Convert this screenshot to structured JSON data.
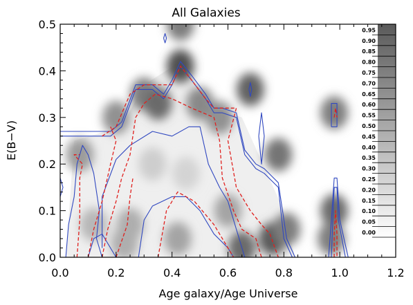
{
  "chart_data": {
    "type": "heatmap",
    "title": "All Galaxies",
    "xlabel": "Age galaxy/Age Universe",
    "ylabel": "E(B−V)",
    "xlim": [
      0.0,
      1.2
    ],
    "ylim": [
      0.0,
      0.5
    ],
    "xticks": [
      "0.0",
      "0.2",
      "0.4",
      "0.6",
      "0.8",
      "1.0",
      "1.2"
    ],
    "yticks": [
      "0.0",
      "0.1",
      "0.2",
      "0.3",
      "0.4",
      "0.5"
    ],
    "colorbar": {
      "levels": [
        "0.95",
        "0.90",
        "0.85",
        "0.80",
        "0.75",
        "0.70",
        "0.65",
        "0.60",
        "0.55",
        "0.50",
        "0.45",
        "0.40",
        "0.35",
        "0.30",
        "0.25",
        "0.20",
        "0.15",
        "0.10",
        "0.05",
        "0.00"
      ]
    },
    "density_peaks": [
      {
        "x": 0.43,
        "y": 0.5,
        "value": 0.6
      },
      {
        "x": 0.43,
        "y": 0.41,
        "value": 0.85
      },
      {
        "x": 0.3,
        "y": 0.35,
        "value": 0.6
      },
      {
        "x": 0.35,
        "y": 0.33,
        "value": 0.7
      },
      {
        "x": 0.5,
        "y": 0.33,
        "value": 0.55
      },
      {
        "x": 0.68,
        "y": 0.36,
        "value": 0.75
      },
      {
        "x": 0.57,
        "y": 0.3,
        "value": 0.5
      },
      {
        "x": 0.2,
        "y": 0.3,
        "value": 0.5
      },
      {
        "x": 0.78,
        "y": 0.22,
        "value": 0.65
      },
      {
        "x": 0.98,
        "y": 0.31,
        "value": 0.6
      },
      {
        "x": 0.07,
        "y": 0.22,
        "value": 0.45
      },
      {
        "x": 0.98,
        "y": 0.1,
        "value": 0.7
      },
      {
        "x": 0.97,
        "y": 0.04,
        "value": 0.6
      },
      {
        "x": 0.76,
        "y": 0.04,
        "value": 0.8
      },
      {
        "x": 0.65,
        "y": 0.02,
        "value": 0.7
      },
      {
        "x": 0.81,
        "y": 0.06,
        "value": 0.6
      },
      {
        "x": 0.42,
        "y": 0.04,
        "value": 0.4
      },
      {
        "x": 0.6,
        "y": 0.1,
        "value": 0.4
      },
      {
        "x": 0.25,
        "y": 0.07,
        "value": 0.35
      },
      {
        "x": 0.12,
        "y": 0.07,
        "value": 0.3
      },
      {
        "x": 0.23,
        "y": 0.03,
        "value": 0.35
      },
      {
        "x": 0.33,
        "y": 0.2,
        "value": 0.18
      },
      {
        "x": 0.45,
        "y": 0.18,
        "value": 0.15
      }
    ],
    "contours": [
      {
        "style": "blue-solid",
        "points": [
          [
            0.0,
            0.27
          ],
          [
            0.12,
            0.27
          ],
          [
            0.18,
            0.27
          ],
          [
            0.22,
            0.29
          ],
          [
            0.27,
            0.37
          ],
          [
            0.33,
            0.37
          ],
          [
            0.37,
            0.35
          ],
          [
            0.4,
            0.38
          ],
          [
            0.43,
            0.42
          ],
          [
            0.47,
            0.39
          ],
          [
            0.52,
            0.35
          ],
          [
            0.55,
            0.32
          ],
          [
            0.58,
            0.32
          ],
          [
            0.63,
            0.31
          ],
          [
            0.66,
            0.23
          ],
          [
            0.7,
            0.2
          ],
          [
            0.73,
            0.19
          ],
          [
            0.78,
            0.16
          ],
          [
            0.81,
            0.04
          ],
          [
            0.84,
            0.0
          ]
        ]
      },
      {
        "style": "blue-solid",
        "points": [
          [
            0.0,
            0.26
          ],
          [
            0.12,
            0.26
          ],
          [
            0.18,
            0.26
          ],
          [
            0.22,
            0.28
          ],
          [
            0.27,
            0.36
          ],
          [
            0.33,
            0.36
          ],
          [
            0.37,
            0.34
          ],
          [
            0.4,
            0.37
          ],
          [
            0.43,
            0.41
          ],
          [
            0.47,
            0.38
          ],
          [
            0.52,
            0.34
          ],
          [
            0.55,
            0.31
          ],
          [
            0.58,
            0.31
          ],
          [
            0.63,
            0.3
          ],
          [
            0.66,
            0.22
          ],
          [
            0.7,
            0.19
          ],
          [
            0.73,
            0.18
          ],
          [
            0.78,
            0.15
          ],
          [
            0.8,
            0.04
          ],
          [
            0.83,
            0.0
          ]
        ]
      },
      {
        "style": "blue-solid",
        "points": [
          [
            0.02,
            0.0
          ],
          [
            0.03,
            0.07
          ],
          [
            0.05,
            0.13
          ],
          [
            0.06,
            0.2
          ],
          [
            0.08,
            0.24
          ],
          [
            0.1,
            0.22
          ],
          [
            0.12,
            0.18
          ],
          [
            0.14,
            0.1
          ],
          [
            0.13,
            0.04
          ],
          [
            0.15,
            0.0
          ]
        ]
      },
      {
        "style": "blue-solid",
        "points": [
          [
            0.15,
            0.02
          ],
          [
            0.15,
            0.13
          ],
          [
            0.2,
            0.21
          ],
          [
            0.25,
            0.24
          ],
          [
            0.33,
            0.27
          ],
          [
            0.4,
            0.26
          ],
          [
            0.46,
            0.28
          ],
          [
            0.5,
            0.28
          ],
          [
            0.53,
            0.2
          ],
          [
            0.57,
            0.15
          ],
          [
            0.6,
            0.12
          ],
          [
            0.62,
            0.08
          ],
          [
            0.64,
            0.04
          ],
          [
            0.66,
            0.0
          ]
        ]
      },
      {
        "style": "blue-solid",
        "points": [
          [
            0.28,
            0.0
          ],
          [
            0.3,
            0.08
          ],
          [
            0.33,
            0.11
          ],
          [
            0.4,
            0.13
          ],
          [
            0.45,
            0.13
          ],
          [
            0.5,
            0.1
          ],
          [
            0.55,
            0.05
          ],
          [
            0.6,
            0.02
          ],
          [
            0.62,
            0.0
          ]
        ]
      },
      {
        "style": "blue-solid",
        "points": [
          [
            0.1,
            0.0
          ],
          [
            0.12,
            0.04
          ],
          [
            0.15,
            0.05
          ],
          [
            0.2,
            0.0
          ]
        ]
      },
      {
        "style": "blue-solid",
        "points": [
          [
            0.96,
            0.0
          ],
          [
            0.97,
            0.08
          ],
          [
            0.98,
            0.17
          ],
          [
            0.99,
            0.17
          ],
          [
            1.0,
            0.08
          ],
          [
            1.03,
            0.0
          ]
        ]
      },
      {
        "style": "blue-solid",
        "points": [
          [
            0.97,
            0.0
          ],
          [
            0.975,
            0.08
          ],
          [
            0.98,
            0.15
          ],
          [
            0.99,
            0.15
          ],
          [
            0.995,
            0.08
          ],
          [
            1.02,
            0.0
          ]
        ]
      },
      {
        "style": "blue-solid",
        "points": [
          [
            0.97,
            0.28
          ],
          [
            0.97,
            0.33
          ],
          [
            0.99,
            0.33
          ],
          [
            0.99,
            0.28
          ],
          [
            0.97,
            0.28
          ]
        ]
      },
      {
        "style": "blue-solid",
        "points": [
          [
            0.675,
            0.36
          ],
          [
            0.68,
            0.375
          ],
          [
            0.685,
            0.36
          ],
          [
            0.68,
            0.345
          ],
          [
            0.675,
            0.36
          ]
        ]
      },
      {
        "style": "blue-solid",
        "points": [
          [
            0.37,
            0.47
          ],
          [
            0.375,
            0.48
          ],
          [
            0.38,
            0.47
          ],
          [
            0.375,
            0.46
          ],
          [
            0.37,
            0.47
          ]
        ]
      },
      {
        "style": "blue-solid",
        "points": [
          [
            0.0,
            0.17
          ],
          [
            0.01,
            0.15
          ],
          [
            0.0,
            0.13
          ]
        ]
      },
      {
        "style": "blue-solid",
        "points": [
          [
            0.71,
            0.26
          ],
          [
            0.72,
            0.31
          ],
          [
            0.73,
            0.26
          ],
          [
            0.72,
            0.2
          ],
          [
            0.71,
            0.26
          ]
        ]
      },
      {
        "style": "red-dashed",
        "points": [
          [
            0.15,
            0.26
          ],
          [
            0.2,
            0.28
          ],
          [
            0.25,
            0.35
          ],
          [
            0.3,
            0.37
          ],
          [
            0.36,
            0.37
          ],
          [
            0.4,
            0.37
          ],
          [
            0.43,
            0.41
          ],
          [
            0.47,
            0.38
          ],
          [
            0.52,
            0.34
          ],
          [
            0.55,
            0.32
          ],
          [
            0.58,
            0.32
          ],
          [
            0.63,
            0.32
          ],
          [
            0.6,
            0.25
          ],
          [
            0.63,
            0.15
          ],
          [
            0.68,
            0.1
          ],
          [
            0.72,
            0.07
          ],
          [
            0.75,
            0.05
          ],
          [
            0.78,
            0.0
          ]
        ]
      },
      {
        "style": "red-dashed",
        "points": [
          [
            0.1,
            0.0
          ],
          [
            0.12,
            0.06
          ],
          [
            0.15,
            0.12
          ],
          [
            0.18,
            0.2
          ],
          [
            0.2,
            0.25
          ],
          [
            0.18,
            0.28
          ]
        ]
      },
      {
        "style": "red-dashed",
        "points": [
          [
            0.15,
            0.0
          ],
          [
            0.17,
            0.06
          ],
          [
            0.2,
            0.12
          ],
          [
            0.22,
            0.17
          ],
          [
            0.25,
            0.22
          ],
          [
            0.27,
            0.3
          ],
          [
            0.3,
            0.33
          ],
          [
            0.34,
            0.35
          ],
          [
            0.4,
            0.34
          ],
          [
            0.47,
            0.32
          ],
          [
            0.55,
            0.3
          ],
          [
            0.57,
            0.25
          ],
          [
            0.58,
            0.17
          ],
          [
            0.62,
            0.1
          ],
          [
            0.65,
            0.06
          ],
          [
            0.7,
            0.04
          ],
          [
            0.72,
            0.0
          ]
        ]
      },
      {
        "style": "red-dashed",
        "points": [
          [
            0.2,
            0.0
          ],
          [
            0.24,
            0.07
          ],
          [
            0.25,
            0.13
          ],
          [
            0.26,
            0.17
          ]
        ]
      },
      {
        "style": "red-dashed",
        "points": [
          [
            0.35,
            0.0
          ],
          [
            0.38,
            0.1
          ],
          [
            0.42,
            0.14
          ],
          [
            0.48,
            0.12
          ],
          [
            0.55,
            0.07
          ],
          [
            0.6,
            0.02
          ],
          [
            0.62,
            0.0
          ]
        ]
      },
      {
        "style": "red-dashed",
        "points": [
          [
            0.06,
            0.0
          ],
          [
            0.07,
            0.08
          ],
          [
            0.07,
            0.17
          ],
          [
            0.08,
            0.2
          ],
          [
            0.05,
            0.22
          ],
          [
            0.07,
            0.22
          ]
        ]
      },
      {
        "style": "red-dashed",
        "points": [
          [
            0.98,
            0.0
          ],
          [
            0.98,
            0.05
          ],
          [
            0.985,
            0.1
          ],
          [
            0.99,
            0.05
          ],
          [
            0.99,
            0.0
          ]
        ]
      },
      {
        "style": "red-dashed",
        "points": [
          [
            0.98,
            0.3
          ],
          [
            0.985,
            0.32
          ],
          [
            0.99,
            0.3
          ]
        ]
      }
    ]
  }
}
